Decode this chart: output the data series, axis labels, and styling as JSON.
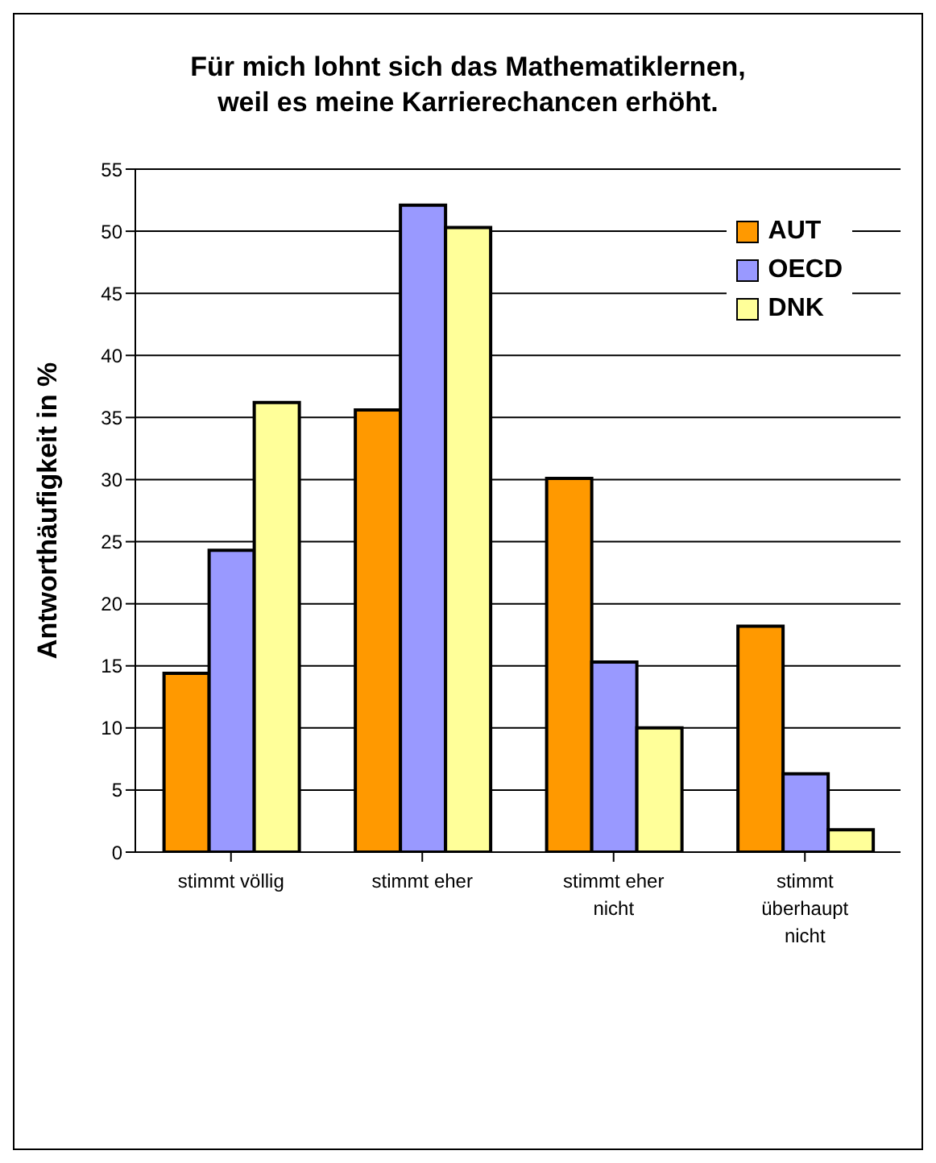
{
  "chart_data": {
    "type": "bar",
    "title": "Für mich lohnt sich das Mathematiklernen,\nweil es meine Karrierechancen erhöht.",
    "ylabel": "Antworthäufigkeit in %",
    "categories": [
      "stimmt völlig",
      "stimmt eher",
      "stimmt eher nicht",
      "stimmt überhaupt nicht"
    ],
    "series": [
      {
        "name": "AUT",
        "color": "#ff9900",
        "values": [
          14.4,
          35.6,
          30.1,
          18.2
        ]
      },
      {
        "name": "OECD",
        "color": "#9999ff",
        "values": [
          24.3,
          52.1,
          15.3,
          6.3
        ]
      },
      {
        "name": "DNK",
        "color": "#ffff99",
        "values": [
          36.2,
          50.3,
          10.0,
          1.8
        ]
      }
    ],
    "ylim": [
      0,
      55
    ],
    "yticks": [
      0,
      5,
      10,
      15,
      20,
      25,
      30,
      35,
      40,
      45,
      50,
      55
    ],
    "grid": "y",
    "legend": "top right"
  }
}
